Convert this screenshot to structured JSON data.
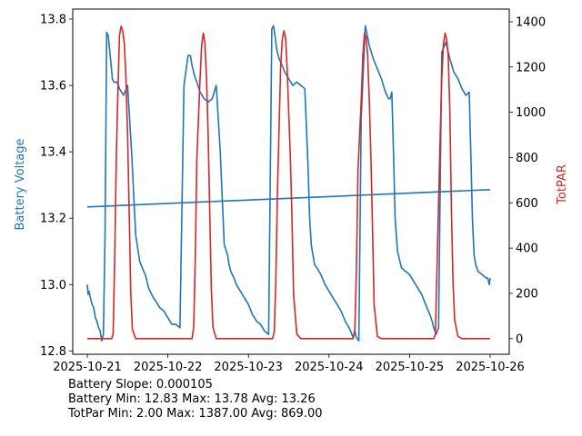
{
  "chart_data": {
    "type": "line",
    "x_labels": [
      "2025-10-21",
      "2025-10-22",
      "2025-10-23",
      "2025-10-24",
      "2025-10-25",
      "2025-10-26"
    ],
    "y_left": {
      "label": "Battery Voltage",
      "color": "#1f77b4",
      "range": [
        12.79,
        13.83
      ],
      "ticks": [
        12.8,
        13.0,
        13.2,
        13.4,
        13.6,
        13.8
      ],
      "tick_labels": [
        "12.8",
        "13.0",
        "13.2",
        "13.4",
        "13.6",
        "13.8"
      ]
    },
    "y_right": {
      "label": "TotPAR",
      "color": "#d62728",
      "range": [
        -69,
        1456
      ],
      "ticks": [
        0,
        200,
        400,
        600,
        800,
        1000,
        1200,
        1400
      ],
      "tick_labels": [
        "0",
        "200",
        "400",
        "600",
        "800",
        "1000",
        "1200",
        "1400"
      ]
    },
    "series": [
      {
        "name": "Battery Voltage",
        "axis": "left",
        "color": "#1f77b4",
        "x": [
          0.0,
          0.01,
          0.02,
          0.04,
          0.06,
          0.08,
          0.1,
          0.12,
          0.14,
          0.16,
          0.18,
          0.2,
          0.22,
          0.24,
          0.26,
          0.28,
          0.3,
          0.31,
          0.33,
          0.35,
          0.37,
          0.4,
          0.45,
          0.5,
          0.55,
          0.6,
          0.65,
          0.7,
          0.72,
          0.74,
          0.76,
          0.78,
          0.8,
          0.82,
          0.85,
          0.9,
          0.95,
          1.0,
          1.05,
          1.1,
          1.15,
          1.2,
          1.25,
          1.28,
          1.3,
          1.33,
          1.36,
          1.4,
          1.45,
          1.5,
          1.55,
          1.6,
          1.65,
          1.7,
          1.74,
          1.76,
          1.78,
          1.8,
          1.82,
          1.85,
          1.9,
          1.95,
          2.0,
          2.05,
          2.1,
          2.15,
          2.2,
          2.25,
          2.29,
          2.31,
          2.33,
          2.35,
          2.38,
          2.42,
          2.45,
          2.5,
          2.55,
          2.6,
          2.65,
          2.7,
          2.74,
          2.76,
          2.78,
          2.8,
          2.82,
          2.85,
          2.9,
          2.95,
          3.0,
          3.05,
          3.1,
          3.15,
          3.2,
          3.25,
          3.3,
          3.32,
          3.34,
          3.37,
          3.4,
          3.45,
          3.5,
          3.55,
          3.6,
          3.65,
          3.7,
          3.74,
          3.76,
          3.78,
          3.8,
          3.82,
          3.85,
          3.9,
          3.95,
          4.0,
          4.05,
          4.1,
          4.15,
          4.2,
          4.25,
          4.28,
          4.3,
          4.33,
          4.36,
          4.4,
          4.45,
          4.5,
          4.55,
          4.6,
          4.65,
          4.7,
          4.74,
          4.76,
          4.78,
          4.8,
          4.82,
          4.85,
          4.9,
          4.95,
          4.97,
          4.99,
          5.0
        ],
        "y": [
          13.0,
          12.97,
          12.98,
          12.96,
          12.94,
          12.93,
          12.9,
          12.89,
          12.87,
          12.86,
          12.83,
          12.85,
          13.15,
          13.76,
          13.75,
          13.7,
          13.65,
          13.62,
          13.61,
          13.61,
          13.61,
          13.59,
          13.57,
          13.6,
          13.4,
          13.15,
          13.07,
          13.04,
          13.03,
          13.01,
          12.99,
          12.98,
          12.97,
          12.96,
          12.95,
          12.93,
          12.92,
          12.9,
          12.88,
          12.88,
          12.87,
          13.6,
          13.69,
          13.69,
          13.66,
          13.63,
          13.61,
          13.58,
          13.56,
          13.55,
          13.56,
          13.6,
          13.4,
          13.12,
          13.09,
          13.06,
          13.04,
          13.03,
          13.02,
          13.0,
          12.98,
          12.96,
          12.94,
          12.91,
          12.89,
          12.88,
          12.86,
          12.85,
          13.77,
          13.78,
          13.75,
          13.71,
          13.68,
          13.66,
          13.64,
          13.62,
          13.6,
          13.61,
          13.6,
          13.59,
          13.35,
          13.2,
          13.12,
          13.09,
          13.06,
          13.05,
          13.03,
          13.0,
          12.98,
          12.96,
          12.94,
          12.92,
          12.89,
          12.87,
          12.84,
          12.86,
          12.84,
          12.83,
          13.5,
          13.78,
          13.72,
          13.68,
          13.65,
          13.62,
          13.58,
          13.56,
          13.56,
          13.58,
          13.4,
          13.2,
          13.1,
          13.05,
          13.04,
          13.03,
          13.01,
          12.99,
          12.97,
          12.94,
          12.91,
          12.89,
          12.87,
          12.85,
          12.87,
          13.7,
          13.73,
          13.68,
          13.64,
          13.62,
          13.59,
          13.57,
          13.58,
          13.4,
          13.2,
          13.09,
          13.06,
          13.04,
          13.03,
          13.02,
          13.02,
          13.0,
          13.02
        ],
        "note": "x in days after 2025-10-21"
      },
      {
        "name": "Battery Voltage trend",
        "axis": "left",
        "color": "#1f77b4",
        "x": [
          0.0,
          5.0
        ],
        "y": [
          13.234,
          13.286
        ]
      },
      {
        "name": "TotPAR",
        "axis": "right",
        "color": "#d62728",
        "x": [
          0.0,
          0.2,
          0.3,
          0.32,
          0.34,
          0.36,
          0.38,
          0.4,
          0.42,
          0.44,
          0.46,
          0.48,
          0.5,
          0.52,
          0.54,
          0.56,
          0.6,
          0.65,
          0.8,
          1.0,
          1.2,
          1.3,
          1.32,
          1.34,
          1.36,
          1.4,
          1.42,
          1.44,
          1.46,
          1.48,
          1.5,
          1.52,
          1.54,
          1.56,
          1.6,
          1.65,
          1.8,
          2.0,
          2.2,
          2.3,
          2.32,
          2.34,
          2.36,
          2.4,
          2.42,
          2.44,
          2.46,
          2.48,
          2.5,
          2.52,
          2.54,
          2.56,
          2.6,
          2.65,
          2.8,
          3.0,
          3.2,
          3.3,
          3.32,
          3.34,
          3.36,
          3.4,
          3.42,
          3.44,
          3.46,
          3.48,
          3.5,
          3.52,
          3.54,
          3.56,
          3.6,
          3.65,
          3.8,
          4.0,
          4.2,
          4.3,
          4.32,
          4.34,
          4.36,
          4.38,
          4.4,
          4.42,
          4.44,
          4.46,
          4.48,
          4.5,
          4.52,
          4.54,
          4.56,
          4.6,
          4.65,
          4.8,
          5.0
        ],
        "y": [
          0,
          0,
          0,
          20,
          350,
          800,
          1100,
          1340,
          1380,
          1360,
          1300,
          1150,
          900,
          550,
          200,
          40,
          0,
          0,
          0,
          0,
          0,
          0,
          50,
          350,
          800,
          1150,
          1300,
          1350,
          1300,
          1150,
          900,
          550,
          220,
          50,
          0,
          0,
          0,
          0,
          0,
          0,
          30,
          250,
          650,
          1200,
          1320,
          1360,
          1330,
          1200,
          1000,
          800,
          550,
          200,
          20,
          0,
          0,
          0,
          0,
          0,
          40,
          300,
          750,
          1050,
          1250,
          1350,
          1330,
          1250,
          1050,
          800,
          500,
          150,
          10,
          0,
          0,
          0,
          0,
          0,
          20,
          300,
          600,
          900,
          1150,
          1300,
          1350,
          1320,
          1250,
          1000,
          550,
          250,
          80,
          10,
          0,
          0,
          0
        ],
        "note": "x in days after 2025-10-21"
      }
    ]
  },
  "stats": {
    "slope": "Battery Slope: 0.000105",
    "battery": "Battery Min: 12.83 Max: 13.78 Avg: 13.26",
    "totpar": "TotPar Min: 2.00 Max: 1387.00 Avg: 869.00"
  }
}
